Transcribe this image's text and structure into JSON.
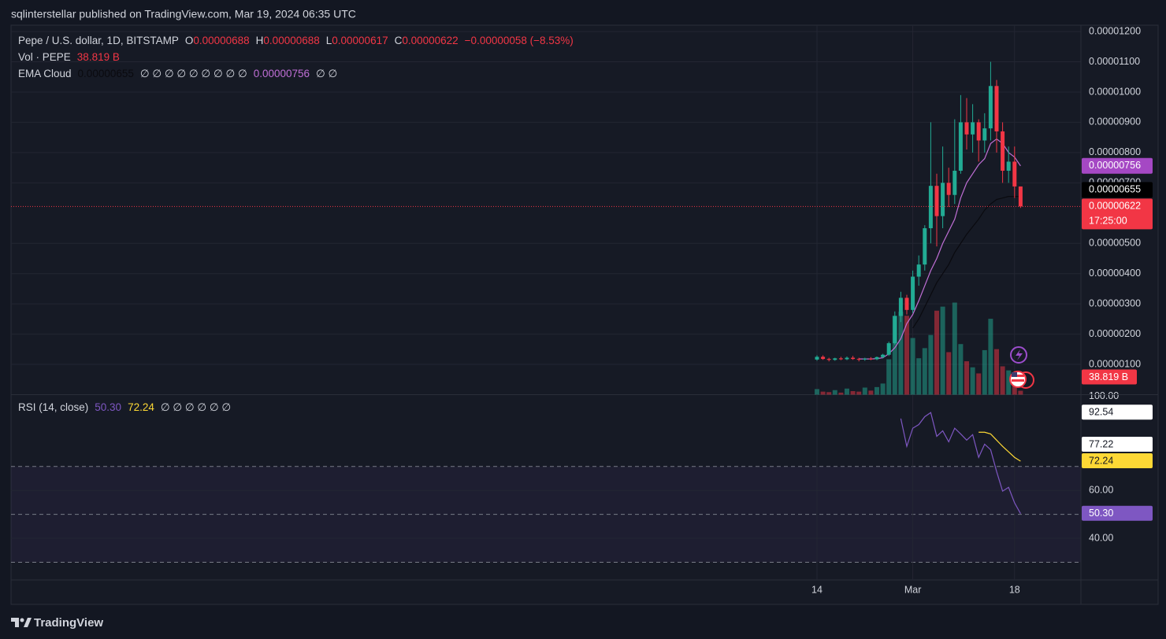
{
  "header": {
    "publisher": "sqlinterstellar published on TradingView.com, Mar 19, 2024 06:35 UTC"
  },
  "chart_data": [
    {
      "type": "candlestick",
      "title": "Pepe / U.S. dollar, 1D, BITSTAMP",
      "legend": {
        "open_key": "O",
        "open": "0.00000688",
        "high_key": "H",
        "high": "0.00000688",
        "low_key": "L",
        "low": "0.00000617",
        "close_key": "C",
        "close": "0.00000622",
        "change": "−0.00000058 (−8.53%)",
        "countdown": "17:25:00"
      },
      "categories": [
        "14",
        null,
        null,
        null,
        null,
        null,
        null,
        null,
        null,
        null,
        null,
        null,
        null,
        null,
        null,
        null,
        "Mar",
        null,
        null,
        null,
        null,
        null,
        null,
        null,
        null,
        null,
        null,
        null,
        null,
        null,
        null,
        null,
        null,
        "18",
        null
      ],
      "open": [
        1.16e-06,
        1.25e-06,
        1.18e-06,
        1.15e-06,
        1.2e-06,
        1.17e-06,
        1.22e-06,
        1.18e-06,
        1.16e-06,
        1.19e-06,
        1.17e-06,
        1.24e-06,
        1.32e-06,
        1.7e-06,
        2.6e-06,
        3.2e-06,
        2.8e-06,
        3.9e-06,
        4.3e-06,
        5.5e-06,
        6.9e-06,
        5.9e-06,
        7e-06,
        6.6e-06,
        7.4e-06,
        9e-06,
        8.6e-06,
        9e-06,
        8.4e-06,
        8.8e-06,
        1.02e-05,
        8.7e-06,
        7.4e-06,
        7.7e-06,
        6.88e-06
      ],
      "high": [
        1.3e-06,
        1.3e-06,
        1.22e-06,
        1.22e-06,
        1.25e-06,
        1.26e-06,
        1.28e-06,
        1.22e-06,
        1.22e-06,
        1.24e-06,
        1.26e-06,
        1.35e-06,
        1.75e-06,
        2.75e-06,
        3.4e-06,
        3.3e-06,
        4.1e-06,
        4.6e-06,
        5.6e-06,
        9e-06,
        7.3e-06,
        8.2e-06,
        7.5e-06,
        9.1e-06,
        9.9e-06,
        9.8e-06,
        9.6e-06,
        9.1e-06,
        9.3e-06,
        1.1e-05,
        1.04e-05,
        9e-06,
        8.2e-06,
        8.2e-06,
        6.88e-06
      ],
      "low": [
        1.12e-06,
        1.15e-06,
        1.1e-06,
        1.12e-06,
        1.14e-06,
        1.14e-06,
        1.15e-06,
        1.1e-06,
        1.12e-06,
        1.14e-06,
        1.14e-06,
        1.2e-06,
        1.28e-06,
        1.65e-06,
        2.4e-06,
        2.65e-06,
        2.7e-06,
        3.6e-06,
        4.1e-06,
        5e-06,
        4.9e-06,
        5.5e-06,
        6.2e-06,
        6.3e-06,
        7.3e-06,
        8.1e-06,
        8e-06,
        7.7e-06,
        8e-06,
        8.4e-06,
        8e-06,
        7e-06,
        7e-06,
        6.5e-06,
        6.17e-06
      ],
      "close": [
        1.25e-06,
        1.18e-06,
        1.15e-06,
        1.2e-06,
        1.17e-06,
        1.22e-06,
        1.18e-06,
        1.16e-06,
        1.19e-06,
        1.17e-06,
        1.24e-06,
        1.32e-06,
        1.7e-06,
        2.6e-06,
        3.2e-06,
        2.8e-06,
        3.9e-06,
        4.3e-06,
        5.5e-06,
        6.9e-06,
        5.9e-06,
        7e-06,
        6.6e-06,
        7.4e-06,
        9e-06,
        8.6e-06,
        9e-06,
        8.4e-06,
        8.8e-06,
        1.02e-05,
        8.7e-06,
        7.4e-06,
        7.7e-06,
        6.88e-06,
        6.22e-06
      ],
      "up_color": "#22ab94",
      "down_color": "#f23645",
      "ylim": [
        0,
        1.221e-05
      ],
      "yticks": [
        {
          "value": 1.2e-05,
          "label": "0.00001200"
        },
        {
          "value": 1.1e-05,
          "label": "0.00001100"
        },
        {
          "value": 1e-05,
          "label": "0.00001000"
        },
        {
          "value": 9e-06,
          "label": "0.00000900"
        },
        {
          "value": 8e-06,
          "label": "0.00000800"
        },
        {
          "value": 7e-06,
          "label": "0.00000700"
        },
        {
          "value": 5e-06,
          "label": "0.00000500"
        },
        {
          "value": 4e-06,
          "label": "0.00000400"
        },
        {
          "value": 3e-06,
          "label": "0.00000300"
        },
        {
          "value": 2e-06,
          "label": "0.00000200"
        },
        {
          "value": 1e-06,
          "label": "0.00000100"
        }
      ],
      "grid": true,
      "volume": {
        "name": "Vol · PEPE",
        "values": [
          55,
          30,
          25,
          45,
          20,
          60,
          35,
          30,
          70,
          40,
          75,
          110,
          350,
          780,
          820,
          780,
          560,
          360,
          460,
          590,
          830,
          870,
          420,
          910,
          500,
          330,
          270,
          210,
          440,
          750,
          450,
          280,
          240,
          150,
          38.819
        ],
        "value_labels": [
          null,
          null,
          null,
          null,
          null,
          null,
          null,
          null,
          null,
          null,
          null,
          null,
          null,
          null,
          null,
          null,
          null,
          null,
          null,
          null,
          null,
          null,
          null,
          null,
          null,
          null,
          null,
          null,
          null,
          null,
          null,
          null,
          null,
          null,
          "38.819 B"
        ]
      },
      "indicator": {
        "name": "EMA Cloud",
        "na_1": "∅ ∅ ∅ ∅ ∅ ∅ ∅ ∅ ∅",
        "na_2": "∅ ∅",
        "series": [
          {
            "color": "#0a0a0f",
            "badge_color": "#000000",
            "values": [
              null,
              null,
              null,
              null,
              null,
              null,
              null,
              null,
              null,
              null,
              null,
              null,
              null,
              null,
              null,
              null,
              2.2e-06,
              2.5e-06,
              2.9e-06,
              3.3e-06,
              3.7e-06,
              4e-06,
              4.3e-06,
              4.7e-06,
              5e-06,
              5.3e-06,
              5.55e-06,
              5.8e-06,
              6.1e-06,
              6.3e-06,
              6.45e-06,
              6.5e-06,
              6.55e-06,
              6.55e-06,
              6.55e-06
            ],
            "value_labels": [
              null,
              null,
              null,
              null,
              null,
              null,
              null,
              null,
              null,
              null,
              null,
              null,
              null,
              null,
              null,
              null,
              null,
              null,
              null,
              null,
              null,
              null,
              null,
              null,
              null,
              null,
              null,
              null,
              null,
              null,
              null,
              null,
              null,
              null,
              "0.00000655"
            ]
          },
          {
            "color": "#c06fd6",
            "badge_color": "#a548c4",
            "values": [
              null,
              null,
              null,
              null,
              null,
              null,
              null,
              1.18e-06,
              1.18e-06,
              1.18e-06,
              1.19e-06,
              1.22e-06,
              1.35e-06,
              1.55e-06,
              1.85e-06,
              2.35e-06,
              2.65e-06,
              3.1e-06,
              3.6e-06,
              4.1e-06,
              4.5e-06,
              5e-06,
              5.4e-06,
              5.8e-06,
              6.5e-06,
              7e-06,
              7.3e-06,
              7.6e-06,
              7.8e-06,
              8.3e-06,
              8.45e-06,
              8.3e-06,
              8e-06,
              7.85e-06,
              7.56e-06
            ],
            "value_labels": [
              null,
              null,
              null,
              null,
              null,
              null,
              null,
              null,
              null,
              null,
              null,
              null,
              null,
              null,
              null,
              null,
              null,
              null,
              null,
              null,
              null,
              null,
              null,
              null,
              null,
              null,
              null,
              null,
              null,
              null,
              null,
              null,
              null,
              null,
              "0.00000756"
            ]
          }
        ]
      }
    },
    {
      "type": "line",
      "title": "RSI (14, close)",
      "na": "∅ ∅ ∅ ∅ ∅ ∅",
      "ylim": [
        22.6,
        100
      ],
      "yticks": [
        {
          "value": 100,
          "label": "100.00"
        },
        {
          "value": 60,
          "label": "60.00"
        },
        {
          "value": 40,
          "label": "40.00"
        }
      ],
      "levels": [
        70,
        50,
        30
      ],
      "highlights": [
        92.54,
        77.22
      ],
      "series": [
        {
          "color": "#7e57c2",
          "values": [
            null,
            null,
            null,
            null,
            null,
            null,
            null,
            null,
            null,
            null,
            null,
            null,
            null,
            null,
            90,
            78.4,
            86,
            87.5,
            90.8,
            92.54,
            82.6,
            84.9,
            80.3,
            86,
            83.6,
            81,
            83.3,
            73.8,
            79.3,
            77,
            67.9,
            59.7,
            61.3,
            54.8,
            50.3
          ],
          "value_labels": [
            null,
            null,
            null,
            null,
            null,
            null,
            null,
            null,
            null,
            null,
            null,
            null,
            null,
            null,
            null,
            null,
            null,
            null,
            null,
            null,
            null,
            null,
            null,
            null,
            null,
            null,
            null,
            null,
            null,
            null,
            null,
            null,
            null,
            null,
            "50.30"
          ]
        },
        {
          "color": "#fdd835",
          "values": [
            null,
            null,
            null,
            null,
            null,
            null,
            null,
            null,
            null,
            null,
            null,
            null,
            null,
            null,
            null,
            null,
            null,
            null,
            null,
            null,
            null,
            null,
            null,
            null,
            null,
            null,
            null,
            84.3,
            84.3,
            83.6,
            81,
            78.4,
            76.1,
            73.8,
            72.24
          ]
        }
      ]
    }
  ],
  "footer": {
    "brand": "TradingView"
  }
}
